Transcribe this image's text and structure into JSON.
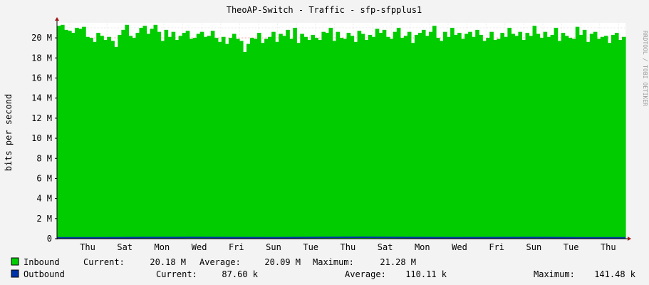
{
  "chart_data": {
    "type": "area",
    "title": "TheoAP-Switch - Traffic - sfp-sfpplus1",
    "ylabel": "bits per second",
    "watermark": "RRDTOOL / TOBI OETIKER",
    "ylim": [
      0,
      21500000
    ],
    "y_ticks": [
      {
        "value": 0,
        "label": "0"
      },
      {
        "value": 2000000,
        "label": "2 M"
      },
      {
        "value": 4000000,
        "label": "4 M"
      },
      {
        "value": 6000000,
        "label": "6 M"
      },
      {
        "value": 8000000,
        "label": "8 M"
      },
      {
        "value": 10000000,
        "label": "10 M"
      },
      {
        "value": 12000000,
        "label": "12 M"
      },
      {
        "value": 14000000,
        "label": "14 M"
      },
      {
        "value": 16000000,
        "label": "16 M"
      },
      {
        "value": 18000000,
        "label": "18 M"
      },
      {
        "value": 20000000,
        "label": "20 M"
      }
    ],
    "x_labels": [
      "Thu",
      "Sat",
      "Mon",
      "Wed",
      "Fri",
      "Sun",
      "Tue",
      "Thu",
      "Sat",
      "Mon",
      "Wed",
      "Fri",
      "Sun",
      "Tue",
      "Thu"
    ],
    "grid": true,
    "colors": {
      "background": "#f3f3f3",
      "canvas": "#ffffff",
      "inbound": "#00cc00",
      "outbound": "#0033aa",
      "grid_major": "#ff9e9e",
      "axis": "#000000",
      "arrow": "#a01818"
    },
    "series": [
      {
        "name": "Inbound",
        "color": "#00cc00",
        "values": [
          21.2,
          21.3,
          20.8,
          20.7,
          20.5,
          21.0,
          20.9,
          21.1,
          20.1,
          20.0,
          19.6,
          20.5,
          20.2,
          19.8,
          20.1,
          19.7,
          19.1,
          20.3,
          20.8,
          21.3,
          20.2,
          20.0,
          20.5,
          21.0,
          21.2,
          20.4,
          20.9,
          21.3,
          20.6,
          19.7,
          20.8,
          20.1,
          20.6,
          19.8,
          20.2,
          20.5,
          20.7,
          19.9,
          20.0,
          20.4,
          20.6,
          20.1,
          20.2,
          20.7,
          20.0,
          19.6,
          20.1,
          19.4,
          20.0,
          20.4,
          19.9,
          19.7,
          18.6,
          19.4,
          20.0,
          19.9,
          20.5,
          19.5,
          19.9,
          20.1,
          20.6,
          19.6,
          20.4,
          20.2,
          20.8,
          19.9,
          21.0,
          19.5,
          20.4,
          20.1,
          19.8,
          20.3,
          20.0,
          19.8,
          20.6,
          20.5,
          21.0,
          19.7,
          20.6,
          20.0,
          19.9,
          20.5,
          20.2,
          19.6,
          20.7,
          20.4,
          19.8,
          20.3,
          20.1,
          20.9,
          20.5,
          20.8,
          20.1,
          19.9,
          20.6,
          21.0,
          20.0,
          20.2,
          20.6,
          19.5,
          20.3,
          20.5,
          20.8,
          20.2,
          20.6,
          21.2,
          20.0,
          19.7,
          20.6,
          20.1,
          21.0,
          20.3,
          20.5,
          19.9,
          20.4,
          20.6,
          20.1,
          20.8,
          20.3,
          19.7,
          20.0,
          20.6,
          19.8,
          19.9,
          20.5,
          20.1,
          21.0,
          20.4,
          20.2,
          20.6,
          19.8,
          20.5,
          20.2,
          21.2,
          20.4,
          20.0,
          20.6,
          20.1,
          20.3,
          21.0,
          19.7,
          20.5,
          20.2,
          20.0,
          19.9,
          21.1,
          20.3,
          20.8,
          19.6,
          20.4,
          20.6,
          19.9,
          20.1,
          20.2,
          19.5,
          20.3,
          20.5,
          19.8,
          20.1
        ],
        "unit_multiplier": 1000000
      },
      {
        "name": "Outbound",
        "color": "#0033aa",
        "values": [
          0.088,
          0.095,
          0.11,
          0.12,
          0.105,
          0.1,
          0.13,
          0.141,
          0.115,
          0.098,
          0.109,
          0.112,
          0.09,
          0.088
        ],
        "unit_multiplier": 1000000
      }
    ]
  },
  "legend": [
    {
      "name": "Inbound",
      "color": "#00cc00",
      "current_label": "Current:",
      "current_value": "20.18 M",
      "average_label": "Average:",
      "average_value": "20.09 M",
      "maximum_label": "Maximum:",
      "maximum_value": "21.28 M"
    },
    {
      "name": "Outbound",
      "color": "#0033aa",
      "current_label": "Current:",
      "current_value": "87.60 k",
      "average_label": "Average:",
      "average_value": "110.11 k",
      "maximum_label": "Maximum:",
      "maximum_value": "141.48 k"
    }
  ]
}
